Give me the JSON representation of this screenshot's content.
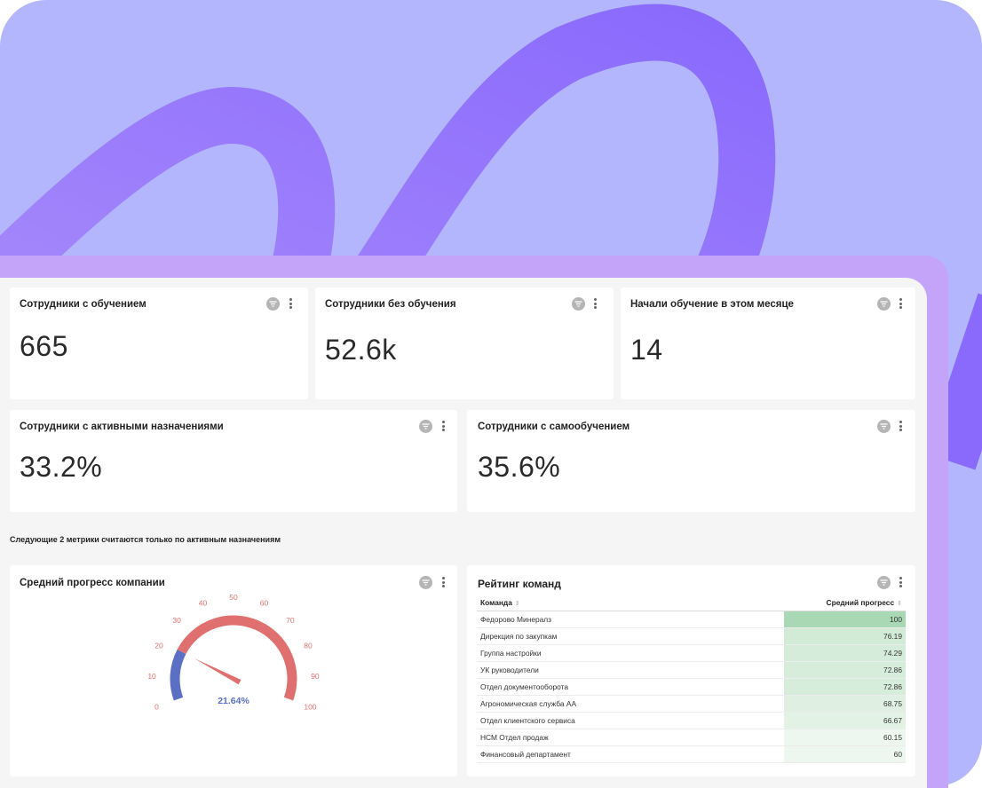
{
  "cards": {
    "employees_trained": {
      "title": "Сотрудники с обучением",
      "value": "665"
    },
    "employees_untrained": {
      "title": "Сотрудники без обучения",
      "value": "52.6k"
    },
    "started_this_month": {
      "title": "Начали обучение в этом месяце",
      "value": "14"
    },
    "active_assignments": {
      "title": "Сотрудники с активными назначениями",
      "value": "33.2%"
    },
    "self_learning": {
      "title": "Сотрудники с самообучением",
      "value": "35.6%"
    }
  },
  "note": "Следующие 2 метрики считаются только по активным назначениям",
  "gauge": {
    "title": "Средний прогресс компании",
    "value": 21.64,
    "value_label": "21.64%",
    "ticks": [
      "0",
      "10",
      "20",
      "30",
      "40",
      "50",
      "60",
      "70",
      "80",
      "90",
      "100"
    ],
    "colors": {
      "filled": "#5b6fc4",
      "rest": "#e07070",
      "needle": "#e07070",
      "label": "#5b6fc4"
    }
  },
  "ranking": {
    "title": "Рейтинг команд",
    "columns": [
      "Команда",
      "Средний прогресс"
    ],
    "rows": [
      {
        "team": "Федорово Минералз",
        "value": "100"
      },
      {
        "team": "Дирекция по закупкам",
        "value": "76.19"
      },
      {
        "team": "Группа настройки",
        "value": "74.29"
      },
      {
        "team": "УК руководители",
        "value": "72.86"
      },
      {
        "team": "Отдел документооборота",
        "value": "72.86"
      },
      {
        "team": "Агрономическая служба АА",
        "value": "68.75"
      },
      {
        "team": "Отдел клиентского сервиса",
        "value": "66.67"
      },
      {
        "team": "НСМ Отдел продаж",
        "value": "60.15"
      },
      {
        "team": "Финансовый департамент",
        "value": "60"
      }
    ],
    "colors": {
      "max": "#a8d9b4",
      "min": "#eef7ef"
    }
  },
  "icons": {
    "filter": "filter-icon",
    "more": "more-vertical-icon"
  },
  "colors": {
    "hero_bg": "#b3b5fd",
    "swirl": "#9b7dfc",
    "shell": "#c4a4f8",
    "dash_bg": "#f5f5f5"
  }
}
